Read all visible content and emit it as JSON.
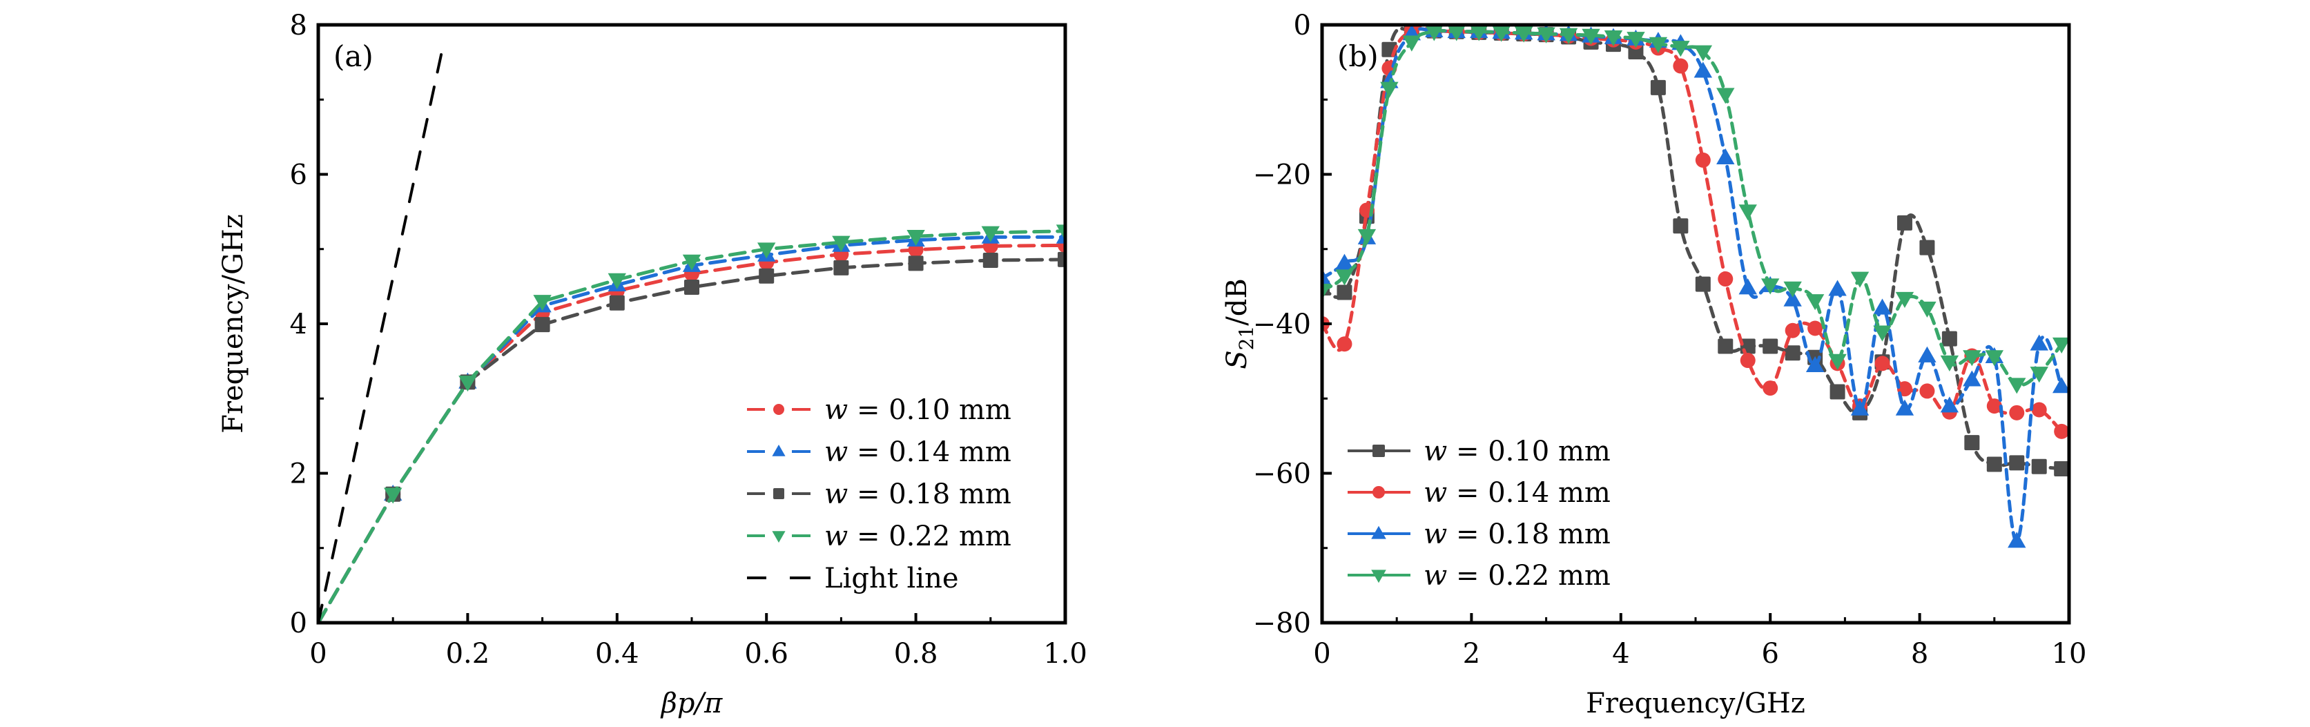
{
  "chart_data": [
    {
      "panel_label": "(a)",
      "type": "line",
      "xlabel": "βp/π",
      "ylabel": "Frequency/GHz",
      "xlim": [
        0,
        1.0
      ],
      "ylim": [
        0,
        8
      ],
      "xticks": [
        0,
        0.2,
        0.4,
        0.6,
        0.8,
        1.0
      ],
      "xtick_labels": [
        "0",
        "0.2",
        "0.4",
        "0.6",
        "0.8",
        "1.0"
      ],
      "yticks": [
        0,
        2,
        4,
        6,
        8
      ],
      "ytick_labels": [
        "0",
        "2",
        "4",
        "6",
        "8"
      ],
      "grid": false,
      "legend_position": "lower-right",
      "x": [
        0,
        0.1,
        0.2,
        0.3,
        0.4,
        0.5,
        0.6,
        0.7,
        0.8,
        0.9,
        1.0
      ],
      "series": [
        {
          "name": "w = 0.10 mm",
          "legend_var": "w",
          "legend_rest": " = 0.10 mm",
          "color": "#e8403f",
          "marker": "circle",
          "style": "dashed",
          "values": [
            0,
            1.72,
            3.22,
            4.15,
            4.44,
            4.67,
            4.82,
            4.93,
            4.99,
            5.04,
            5.05
          ]
        },
        {
          "name": "w = 0.14 mm",
          "legend_var": "w",
          "legend_rest": " = 0.14 mm",
          "color": "#1f6fd6",
          "marker": "triangle-up",
          "style": "dashed",
          "values": [
            0,
            1.72,
            3.22,
            4.24,
            4.52,
            4.78,
            4.92,
            5.05,
            5.12,
            5.16,
            5.16
          ]
        },
        {
          "name": "w = 0.18 mm",
          "legend_var": "w",
          "legend_rest": " = 0.18 mm",
          "color": "#4d4d4d",
          "marker": "square",
          "style": "dashed",
          "values": [
            0,
            1.72,
            3.22,
            3.99,
            4.28,
            4.49,
            4.64,
            4.75,
            4.81,
            4.85,
            4.86
          ]
        },
        {
          "name": "w = 0.22 mm",
          "legend_var": "w",
          "legend_rest": " = 0.22 mm",
          "color": "#38a86a",
          "marker": "triangle-down",
          "style": "dashed",
          "values": [
            0,
            1.72,
            3.22,
            4.3,
            4.59,
            4.84,
            5.0,
            5.09,
            5.17,
            5.22,
            5.24
          ]
        },
        {
          "name": "Light line",
          "legend_var": "",
          "legend_rest": "Light line",
          "color": "#000000",
          "marker": "none",
          "style": "long-dashed",
          "points": [
            [
              0,
              0
            ],
            [
              0.168,
              7.76
            ]
          ]
        }
      ]
    },
    {
      "panel_label": "(b)",
      "type": "line",
      "xlabel": "Frequency/GHz",
      "ylabel": "S21/dB",
      "ylabel_main": "S",
      "ylabel_sub": "21",
      "ylabel_rest": "/dB",
      "xlim": [
        0,
        10
      ],
      "ylim": [
        -80,
        0
      ],
      "xticks": [
        0,
        2,
        4,
        6,
        8,
        10
      ],
      "xtick_labels": [
        "0",
        "2",
        "4",
        "6",
        "8",
        "10"
      ],
      "yticks": [
        0,
        -20,
        -40,
        -60,
        -80
      ],
      "ytick_labels": [
        "0",
        "−20",
        "−40",
        "−60",
        "−80"
      ],
      "grid": false,
      "legend_position": "lower-left",
      "x": [
        0,
        0.3,
        0.6,
        0.9,
        1.2,
        1.5,
        1.8,
        2.1,
        2.4,
        2.7,
        3.0,
        3.3,
        3.6,
        3.9,
        4.2,
        4.5,
        4.8,
        5.1,
        5.4,
        5.7,
        6.0,
        6.3,
        6.6,
        6.9,
        7.2,
        7.5,
        7.8,
        8.1,
        8.4,
        8.7,
        9.0,
        9.3,
        9.6,
        9.9
      ],
      "series": [
        {
          "name": "w = 0.10 mm",
          "legend_var": "w",
          "legend_rest": " = 0.10 mm",
          "color": "#4d4d4d",
          "marker": "square",
          "style": "dashed",
          "values": [
            -35.2,
            -35.8,
            -25.6,
            -3.3,
            -0.7,
            -0.8,
            -0.9,
            -1.0,
            -1.1,
            -1.2,
            -1.3,
            -1.6,
            -2.3,
            -2.6,
            -3.6,
            -8.4,
            -26.9,
            -34.7,
            -43.0,
            -43.0,
            -43.0,
            -43.9,
            -44.5,
            -49.1,
            -51.9,
            -45.1,
            -26.5,
            -29.8,
            -42.0,
            -55.9,
            -58.8,
            -58.6,
            -59.1,
            -59.4
          ]
        },
        {
          "name": "w = 0.14 mm",
          "legend_var": "w",
          "legend_rest": " = 0.14 mm",
          "color": "#e8403f",
          "marker": "circle",
          "style": "dashed",
          "values": [
            -40.0,
            -42.7,
            -24.8,
            -5.8,
            -0.7,
            -0.8,
            -0.9,
            -1.0,
            -1.1,
            -1.2,
            -1.3,
            -1.5,
            -1.8,
            -2.0,
            -2.3,
            -3.1,
            -5.5,
            -18.1,
            -34.0,
            -44.9,
            -48.6,
            -40.9,
            -40.6,
            -45.3,
            -51.0,
            -45.3,
            -48.7,
            -49.0,
            -51.8,
            -44.3,
            -51.0,
            -51.9,
            -51.5,
            -54.4
          ]
        },
        {
          "name": "w = 0.18 mm",
          "legend_var": "w",
          "legend_rest": " = 0.18 mm",
          "color": "#1f6fd6",
          "marker": "triangle-up",
          "style": "dashed",
          "values": [
            -33.9,
            -31.9,
            -28.5,
            -7.6,
            -1.2,
            -0.8,
            -0.9,
            -0.9,
            -1.0,
            -1.1,
            -1.2,
            -1.3,
            -1.5,
            -1.7,
            -1.9,
            -2.2,
            -2.5,
            -6.2,
            -17.8,
            -35.2,
            -34.9,
            -36.8,
            -45.6,
            -35.4,
            -51.4,
            -37.9,
            -51.4,
            -44.3,
            -51.0,
            -47.5,
            -44.4,
            -69.1,
            -42.7,
            -48.4
          ]
        },
        {
          "name": "w = 0.22 mm",
          "legend_var": "w",
          "legend_rest": " = 0.22 mm",
          "color": "#38a86a",
          "marker": "triangle-down",
          "style": "dashed",
          "values": [
            -35.5,
            -33.6,
            -28.2,
            -8.5,
            -2.3,
            -0.9,
            -0.9,
            -0.9,
            -1.0,
            -1.1,
            -1.2,
            -1.3,
            -1.4,
            -1.6,
            -1.8,
            -2.5,
            -3.0,
            -3.6,
            -9.3,
            -24.9,
            -34.8,
            -35.2,
            -36.9,
            -44.9,
            -33.9,
            -41.1,
            -36.6,
            -37.9,
            -45.1,
            -44.4,
            -44.4,
            -48.1,
            -46.6,
            -42.7
          ]
        }
      ]
    }
  ]
}
